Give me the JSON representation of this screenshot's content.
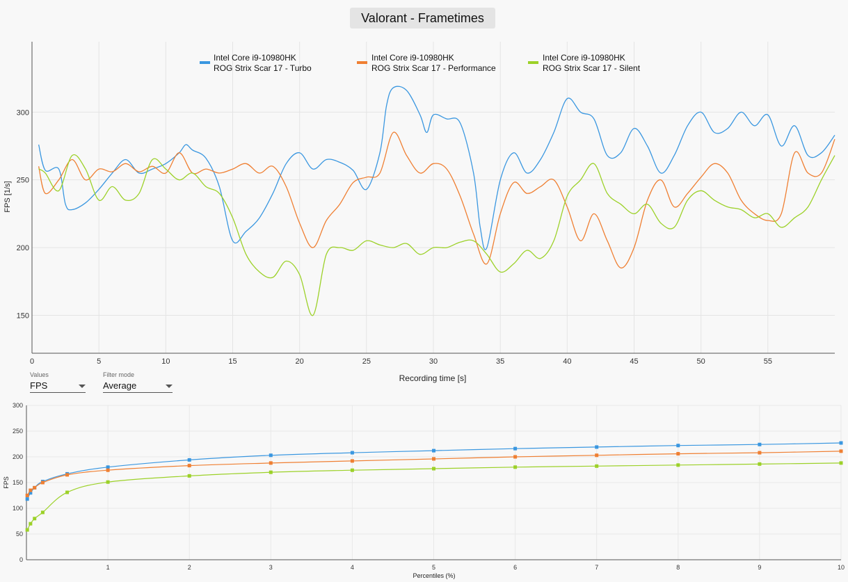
{
  "frametimes": {
    "title": "Valorant - Frametimes",
    "xlabel": "Recording time [s]",
    "ylabel": "FPS [1/s]",
    "x_ticks": [
      "0",
      "5",
      "10",
      "15",
      "20",
      "25",
      "30",
      "35",
      "40",
      "45",
      "50",
      "55"
    ],
    "y_ticks": [
      "150",
      "200",
      "250",
      "300"
    ]
  },
  "controls": {
    "values_label": "Values",
    "values_value": "FPS",
    "filter_label": "Filter mode",
    "filter_value": "Average"
  },
  "legend": [
    {
      "line1": "Intel Core i9-10980HK",
      "line2": "ROG Strix Scar 17 - Turbo"
    },
    {
      "line1": "Intel Core i9-10980HK",
      "line2": "ROG Strix Scar 17 - Performance"
    },
    {
      "line1": "Intel Core i9-10980HK",
      "line2": "ROG Strix Scar 17 - Silent"
    }
  ],
  "percentiles": {
    "xlabel": "Percentiles (%)",
    "ylabel": "FPS",
    "x_ticks": [
      "1",
      "2",
      "3",
      "4",
      "5",
      "6",
      "7",
      "8",
      "9",
      "10"
    ],
    "y_ticks": [
      "0",
      "50",
      "100",
      "150",
      "200",
      "250",
      "300"
    ]
  },
  "chart_data": [
    {
      "type": "line",
      "title": "Valorant - Frametimes",
      "xlabel": "Recording time [s]",
      "ylabel": "FPS [1/s]",
      "xlim": [
        0,
        60
      ],
      "ylim": [
        122,
        352
      ],
      "grid": true,
      "legend_position": "top",
      "series": [
        {
          "name": "Intel Core i9-10980HK ROG Strix Scar 17 - Turbo",
          "color": "#3a97e0",
          "x": [
            0.5,
            1,
            2,
            2.5,
            3,
            4,
            5,
            6,
            7,
            8,
            9,
            10,
            11,
            11.5,
            12,
            13,
            14,
            15,
            16,
            17,
            18,
            19,
            20,
            21,
            22,
            23,
            24,
            25,
            26,
            26.5,
            27,
            28,
            29,
            29.5,
            30,
            31,
            32,
            33,
            33.5,
            34,
            35,
            36,
            37,
            38,
            39,
            40,
            41,
            42,
            43,
            44,
            45,
            46,
            47,
            48,
            49,
            50,
            51,
            52,
            53,
            54,
            55,
            56,
            57,
            58,
            59,
            60
          ],
          "y": [
            276,
            257,
            258,
            232,
            228,
            233,
            243,
            255,
            265,
            255,
            258,
            262,
            270,
            276,
            272,
            266,
            245,
            205,
            212,
            222,
            240,
            262,
            270,
            258,
            265,
            263,
            257,
            243,
            270,
            305,
            318,
            316,
            298,
            285,
            298,
            295,
            292,
            255,
            215,
            200,
            250,
            270,
            255,
            265,
            285,
            310,
            300,
            295,
            268,
            270,
            288,
            275,
            255,
            268,
            290,
            300,
            285,
            288,
            300,
            290,
            298,
            275,
            290,
            268,
            270,
            283
          ]
        },
        {
          "name": "Intel Core i9-10980HK ROG Strix Scar 17 - Performance",
          "color": "#ef7f32",
          "x": [
            0.5,
            1,
            2,
            3,
            4,
            5,
            6,
            7,
            8,
            9,
            10,
            11,
            12,
            13,
            14,
            15,
            16,
            17,
            18,
            19,
            20,
            21,
            22,
            23,
            24,
            25,
            26,
            27,
            28,
            29,
            30,
            31,
            32,
            33,
            34,
            35,
            36,
            37,
            38,
            39,
            40,
            41,
            42,
            43,
            44,
            45,
            46,
            47,
            48,
            49,
            50,
            51,
            52,
            53,
            54,
            55,
            56,
            57,
            58,
            59,
            60
          ],
          "y": [
            260,
            240,
            250,
            265,
            250,
            258,
            256,
            262,
            256,
            260,
            255,
            270,
            255,
            258,
            255,
            258,
            262,
            255,
            260,
            245,
            218,
            200,
            220,
            232,
            248,
            252,
            255,
            285,
            268,
            255,
            262,
            258,
            238,
            210,
            188,
            225,
            248,
            240,
            245,
            250,
            230,
            205,
            225,
            205,
            185,
            200,
            235,
            250,
            230,
            240,
            252,
            262,
            255,
            235,
            225,
            220,
            225,
            270,
            255,
            255,
            280
          ]
        },
        {
          "name": "Intel Core i9-10980HK ROG Strix Scar 17 - Silent",
          "color": "#9cd128",
          "x": [
            0.5,
            1,
            2,
            3,
            4,
            5,
            6,
            7,
            8,
            9,
            10,
            11,
            12,
            13,
            14,
            15,
            16,
            17,
            18,
            19,
            20,
            21,
            22,
            23,
            24,
            25,
            26,
            27,
            28,
            29,
            30,
            31,
            32,
            33,
            34,
            35,
            36,
            37,
            38,
            39,
            40,
            41,
            42,
            43,
            44,
            45,
            46,
            47,
            48,
            49,
            50,
            51,
            52,
            53,
            54,
            55,
            56,
            57,
            58,
            59,
            60
          ],
          "y": [
            258,
            255,
            242,
            268,
            258,
            235,
            245,
            235,
            240,
            265,
            258,
            250,
            255,
            245,
            240,
            222,
            195,
            182,
            178,
            190,
            180,
            150,
            195,
            200,
            198,
            205,
            202,
            200,
            203,
            195,
            200,
            200,
            204,
            205,
            195,
            182,
            188,
            198,
            192,
            205,
            238,
            250,
            262,
            240,
            232,
            225,
            232,
            218,
            215,
            235,
            242,
            235,
            230,
            228,
            222,
            225,
            215,
            222,
            230,
            250,
            268
          ]
        }
      ]
    },
    {
      "type": "line",
      "title": "",
      "xlabel": "Percentiles (%)",
      "ylabel": "FPS",
      "xlim": [
        0,
        10
      ],
      "ylim": [
        0,
        300
      ],
      "grid": true,
      "series": [
        {
          "name": "Intel Core i9-10980HK ROG Strix Scar 17 - Turbo",
          "color": "#3a97e0",
          "x": [
            0.01,
            0.05,
            0.1,
            0.2,
            0.5,
            1,
            2,
            3,
            4,
            5,
            6,
            7,
            8,
            9,
            10
          ],
          "y": [
            118,
            130,
            140,
            152,
            167,
            180,
            194,
            203,
            208,
            212,
            216,
            219,
            222,
            224,
            227
          ]
        },
        {
          "name": "Intel Core i9-10980HK ROG Strix Scar 17 - Performance",
          "color": "#ef7f32",
          "x": [
            0.01,
            0.05,
            0.1,
            0.2,
            0.5,
            1,
            2,
            3,
            4,
            5,
            6,
            7,
            8,
            9,
            10
          ],
          "y": [
            125,
            135,
            140,
            150,
            165,
            174,
            183,
            188,
            192,
            196,
            200,
            203,
            206,
            208,
            211
          ]
        },
        {
          "name": "Intel Core i9-10980HK ROG Strix Scar 17 - Silent",
          "color": "#9cd128",
          "x": [
            0.01,
            0.05,
            0.1,
            0.2,
            0.5,
            1,
            2,
            3,
            4,
            5,
            6,
            7,
            8,
            9,
            10
          ],
          "y": [
            58,
            70,
            80,
            92,
            131,
            151,
            163,
            170,
            174,
            177,
            180,
            182,
            184,
            186,
            188
          ]
        }
      ]
    }
  ]
}
